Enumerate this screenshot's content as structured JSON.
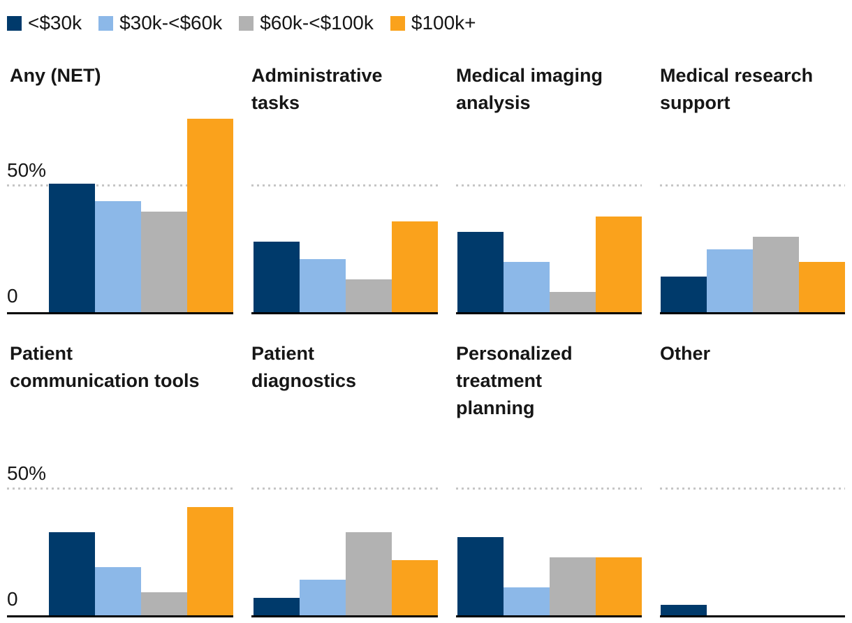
{
  "legend": {
    "items": [
      {
        "label": "<$30k",
        "color": "#003a6b",
        "swatch_icon": "square-swatch-navy"
      },
      {
        "label": "$30k-<$60k",
        "color": "#8cb8e8",
        "swatch_icon": "square-swatch-lightblue"
      },
      {
        "label": "$60k-<$100k",
        "color": "#b2b2b2",
        "swatch_icon": "square-swatch-gray"
      },
      {
        "label": "$100k+",
        "color": "#faa21c",
        "swatch_icon": "square-swatch-orange"
      }
    ],
    "position": "top-left"
  },
  "axis": {
    "y50_label": "50%",
    "y0_label": "0",
    "unit": "percent"
  },
  "colors": {
    "background": "#ffffff",
    "text": "#161616",
    "gridline": "#c6c6c6",
    "baseline": "#000000"
  },
  "chart_data": {
    "type": "bar",
    "layout": "small-multiples, 2 rows x 4 columns, shared y-scale",
    "grid": "dotted gridline at 50% only, solid black baseline at 0",
    "legend_position": "top",
    "ylim": [
      0,
      80
    ],
    "gridlines_at": [
      50
    ],
    "categories": [
      "<$30k",
      "$30k-<$60k",
      "$60k-<$100k",
      "$100k+"
    ],
    "panels": [
      {
        "title": "Any (NET)",
        "title_display": "Any (NET)",
        "values": [
          51,
          44,
          40,
          77
        ]
      },
      {
        "title": "Administrative tasks",
        "title_display": "Administrative\ntasks",
        "values": [
          28,
          21,
          13,
          36
        ]
      },
      {
        "title": "Medical imaging analysis",
        "title_display": "Medical imaging\nanalysis",
        "values": [
          32,
          20,
          8,
          38
        ]
      },
      {
        "title": "Medical research support",
        "title_display": "Medical research\nsupport",
        "values": [
          14,
          25,
          30,
          20
        ]
      },
      {
        "title": "Patient communication tools",
        "title_display": "Patient\ncommunication tools",
        "values": [
          33,
          19,
          9,
          43
        ]
      },
      {
        "title": "Patient diagnostics",
        "title_display": "Patient\ndiagnostics",
        "values": [
          7,
          14,
          33,
          22
        ]
      },
      {
        "title": "Personalized treatment planning",
        "title_display": "Personalized\ntreatment\nplanning",
        "values": [
          31,
          11,
          23,
          23
        ]
      },
      {
        "title": "Other",
        "title_display": "Other",
        "values": [
          4,
          0,
          0,
          0
        ]
      }
    ]
  }
}
